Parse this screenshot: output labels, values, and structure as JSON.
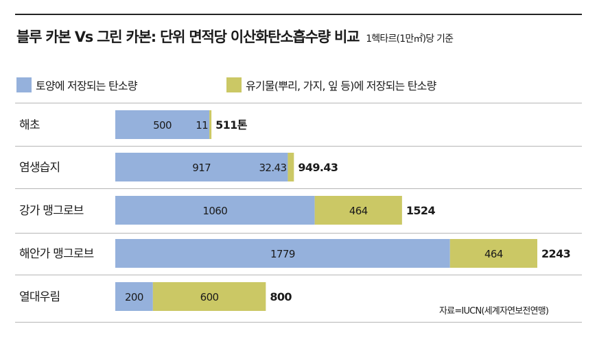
{
  "chart_data": {
    "type": "bar",
    "stacked": true,
    "orientation": "horizontal",
    "title": "블루 카본 Vs 그린 카본: 단위 면적당 이산화탄소흡수량 비교",
    "subtitle": "1헥타르(1만㎡)당 기준",
    "categories": [
      "해초",
      "염생습지",
      "강가 맹그로브",
      "해안가 맹그로브",
      "열대우림"
    ],
    "series": [
      {
        "name": "토양에 저장되는 탄소량",
        "values": [
          500,
          917,
          1060,
          1779,
          200
        ],
        "labels": [
          "500",
          "917",
          "1060",
          "1779",
          "200"
        ],
        "color": "#95b1dc"
      },
      {
        "name": "유기물(뿌리, 가지, 잎 등)에 저장되는 탄소량",
        "values": [
          11,
          32.43,
          464,
          464,
          600
        ],
        "labels": [
          "11",
          "32.43",
          "464",
          "464",
          "600"
        ],
        "color": "#cbc865"
      }
    ],
    "totals": [
      "511톤",
      "949.43",
      "1524",
      "2243",
      "800"
    ],
    "xlim": [
      0,
      2243
    ],
    "legend_position": "top-left",
    "grid": false
  },
  "source": "자료=IUCN(세계자연보전연맹)"
}
